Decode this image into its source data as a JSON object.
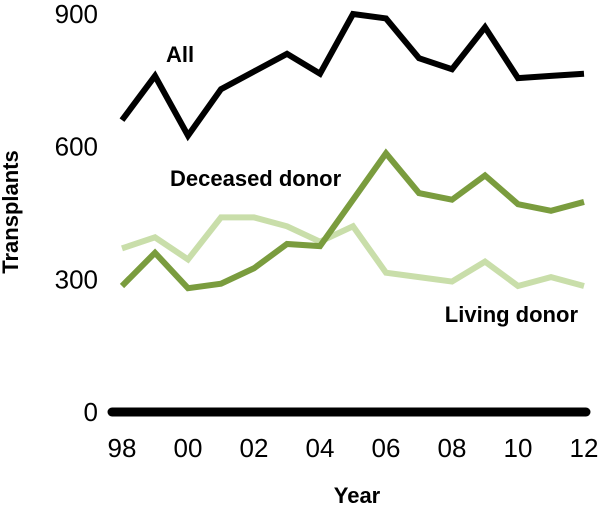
{
  "chart_data": {
    "type": "line",
    "xlabel": "Year",
    "ylabel": "Transplants",
    "x": [
      98,
      99,
      0,
      1,
      2,
      3,
      4,
      5,
      6,
      7,
      8,
      9,
      10,
      11,
      12
    ],
    "x_tick_labels": [
      "98",
      "00",
      "02",
      "04",
      "06",
      "08",
      "10",
      "12"
    ],
    "y_tick_labels": [
      "0",
      "300",
      "600",
      "900"
    ],
    "ylim": [
      0,
      900
    ],
    "grid": false,
    "legend": "none (series labeled directly on lines)",
    "series": [
      {
        "name": "All",
        "color": "#000000",
        "values": [
          660,
          760,
          625,
          730,
          770,
          810,
          765,
          900,
          890,
          800,
          775,
          870,
          755,
          760,
          765
        ]
      },
      {
        "name": "Deceased donor",
        "color": "#7a9c3e",
        "values": [
          285,
          360,
          280,
          290,
          325,
          380,
          375,
          480,
          585,
          495,
          480,
          535,
          470,
          455,
          475
        ]
      },
      {
        "name": "Living donor",
        "color": "#c9deaa",
        "values": [
          370,
          395,
          345,
          440,
          440,
          420,
          385,
          420,
          315,
          305,
          295,
          340,
          285,
          305,
          285
        ]
      }
    ]
  }
}
